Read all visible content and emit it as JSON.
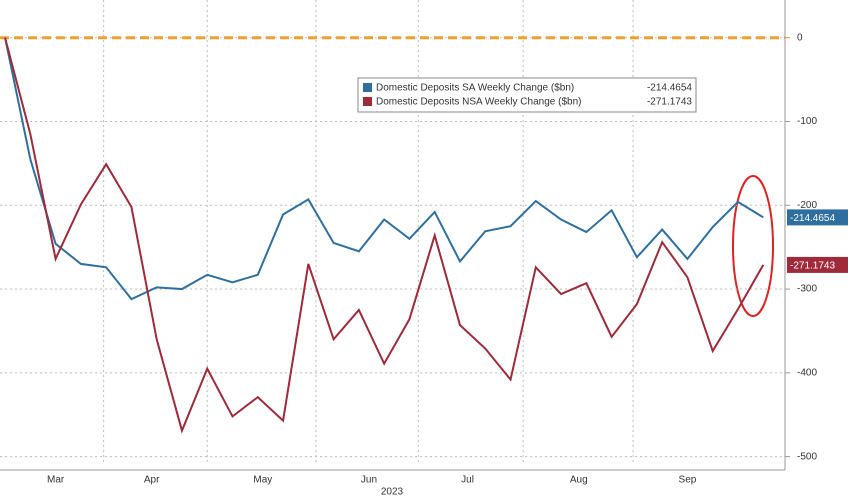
{
  "chart_data": {
    "type": "line",
    "categories": [
      null,
      null,
      null,
      null,
      null,
      null,
      null,
      null,
      null,
      null,
      null,
      null,
      null,
      null,
      null,
      null,
      null,
      null,
      null,
      null,
      null,
      null,
      null,
      null,
      null,
      null,
      null,
      null,
      null,
      null,
      null
    ],
    "series": [
      {
        "name": "Domestic Deposits SA Weekly Change ($bn)",
        "color": "#2f6f9f",
        "values": [
          0,
          -145,
          -246,
          -270,
          -274,
          -312,
          -298,
          -300,
          -283,
          -292,
          -283,
          -211,
          -193,
          -245,
          -255,
          -217,
          -240,
          -208,
          -267,
          -231,
          -225,
          -195,
          -217,
          -232,
          -206,
          -262,
          -229,
          -264,
          -226,
          -196,
          -214.4654
        ]
      },
      {
        "name": "Domestic Deposits NSA Weekly Change ($bn)",
        "color": "#9e2a3a",
        "values": [
          0,
          -115,
          -264,
          -199,
          -151,
          -202,
          -360,
          -469,
          -395,
          -452,
          -429,
          -457,
          -270,
          -360,
          -325,
          -389,
          -336,
          -236,
          -343,
          -371,
          -408,
          -274,
          -306,
          -293,
          -357,
          -318,
          -244,
          -286,
          -374,
          -324,
          -271.1743
        ]
      }
    ],
    "ylim": [
      45,
      -510
    ],
    "yticks": [
      0,
      -100,
      -200,
      -300,
      -400,
      -500
    ],
    "xticks": [
      {
        "value": 2,
        "label": "Mar"
      },
      {
        "value": 5.8,
        "label": "Apr"
      },
      {
        "value": 10.2,
        "label": "May"
      },
      {
        "value": 14.4,
        "label": "Jun"
      },
      {
        "value": 18.3,
        "label": "Jul"
      },
      {
        "value": 22.7,
        "label": "Aug"
      },
      {
        "value": 27,
        "label": "Sep"
      }
    ],
    "xlabel": "2023",
    "reference_line": 0,
    "grid": true
  }
}
